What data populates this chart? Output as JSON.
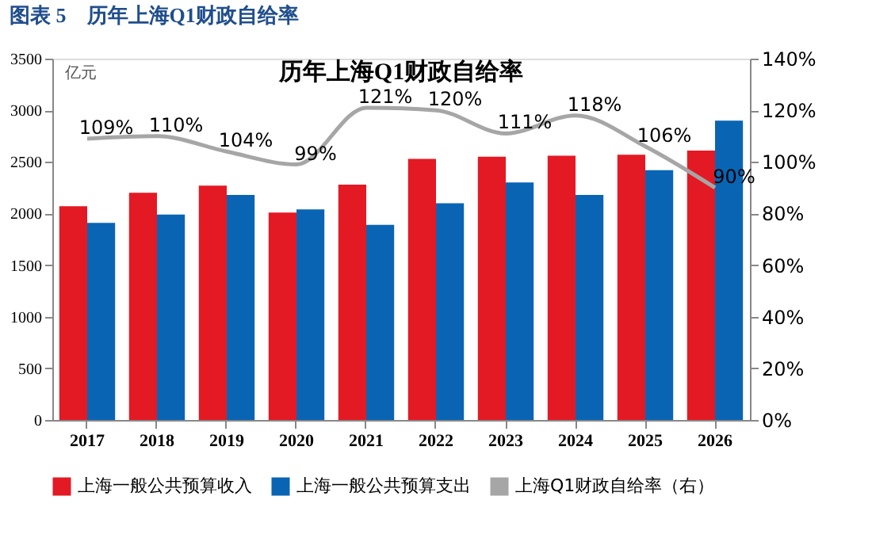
{
  "chart_data": {
    "type": "bar",
    "title": "图表 5　历年上海Q1财政自给率",
    "subtitle": "历年上海Q1财政自给率",
    "ylabel": "亿元",
    "categories": [
      "2017",
      "2018",
      "2019",
      "2020",
      "2021",
      "2022",
      "2023",
      "2024",
      "2025",
      "2026"
    ],
    "series": [
      {
        "name": "上海一般公共预算收入",
        "color": "#e31a24",
        "values": [
          2070,
          2200,
          2270,
          2010,
          2280,
          2530,
          2550,
          2560,
          2570,
          2610
        ]
      },
      {
        "name": "上海一般公共预算支出",
        "color": "#0a64b4",
        "values": [
          1910,
          1990,
          2180,
          2040,
          1890,
          2100,
          2300,
          2180,
          2420,
          2900
        ]
      },
      {
        "name": "上海Q1财政自给率（右）",
        "type": "line",
        "axis": "y2",
        "color": "#a6a6a6",
        "values": [
          109,
          110,
          104,
          99,
          121,
          120,
          111,
          118,
          106,
          90
        ],
        "value_labels": [
          "109%",
          "110%",
          "104%",
          "99%",
          "121%",
          "120%",
          "111%",
          "118%",
          "106%",
          "90%"
        ]
      }
    ],
    "ylim": [
      0,
      3500
    ],
    "yticks": [
      0,
      500,
      1000,
      1500,
      2000,
      2500,
      3000,
      3500
    ],
    "y2lim": [
      0,
      140
    ],
    "y2ticks": [
      {
        "value": 0,
        "label": "0%"
      },
      {
        "value": 20,
        "label": "20%"
      },
      {
        "value": 40,
        "label": "40%"
      },
      {
        "value": 60,
        "label": "60%"
      },
      {
        "value": 80,
        "label": "80%"
      },
      {
        "value": 100,
        "label": "100%"
      },
      {
        "value": 120,
        "label": "120%"
      },
      {
        "value": 140,
        "label": "140%"
      }
    ],
    "grid": false,
    "legend": "bottom",
    "line_style": "solid",
    "marker": "none"
  }
}
